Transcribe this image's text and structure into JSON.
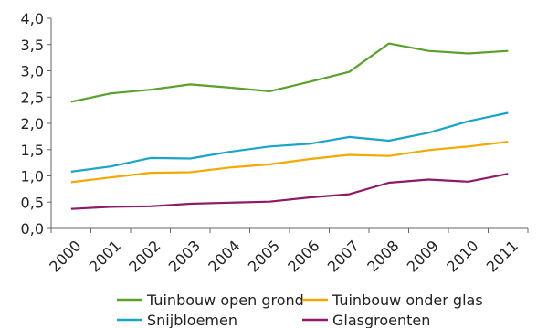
{
  "chart_data": {
    "type": "line",
    "title": "",
    "xlabel": "",
    "ylabel": "",
    "categories": [
      "2000",
      "2001",
      "2002",
      "2003",
      "2004",
      "2005",
      "2006",
      "2007",
      "2008",
      "2009",
      "2010",
      "2011"
    ],
    "ylim": [
      0,
      4.0
    ],
    "yticks": [
      "0,0",
      "0,5",
      "1,0",
      "1,5",
      "2,0",
      "2,5",
      "3,0",
      "3,5",
      "4,0"
    ],
    "grid": false,
    "legend_position": "bottom",
    "series": [
      {
        "name": "Tuinbouw open grond",
        "color": "#5aa02c",
        "values": [
          2.41,
          2.57,
          2.64,
          2.74,
          2.68,
          2.61,
          2.79,
          2.98,
          3.52,
          3.38,
          3.33,
          3.38
        ]
      },
      {
        "name": "Tuinbouw onder glas",
        "color": "#f5a800",
        "values": [
          0.88,
          0.97,
          1.06,
          1.07,
          1.16,
          1.22,
          1.32,
          1.4,
          1.38,
          1.49,
          1.56,
          1.65
        ]
      },
      {
        "name": "Snijbloemen",
        "color": "#1aa5c8",
        "values": [
          1.08,
          1.18,
          1.34,
          1.33,
          1.46,
          1.56,
          1.61,
          1.74,
          1.67,
          1.82,
          2.04,
          2.2
        ]
      },
      {
        "name": "Glasgroenten",
        "color": "#8e1a68",
        "values": [
          0.37,
          0.41,
          0.42,
          0.47,
          0.49,
          0.51,
          0.59,
          0.65,
          0.87,
          0.93,
          0.89,
          1.04
        ]
      }
    ]
  }
}
